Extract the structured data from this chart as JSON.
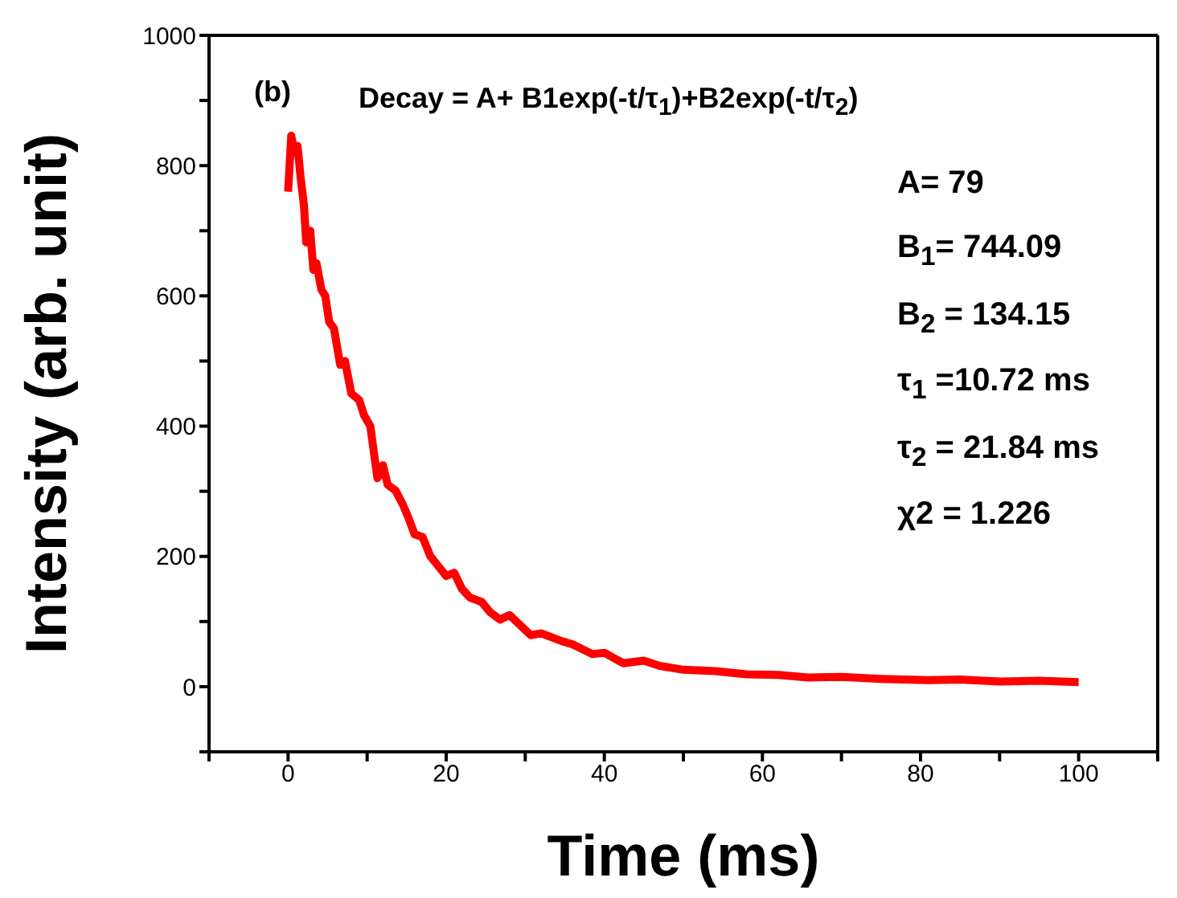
{
  "chart_data": {
    "type": "line",
    "xlabel": "Time (ms)",
    "ylabel": "Intensity (arb. unit)",
    "annotations": [
      "(b)",
      "Decay = A+ B1exp(-t/τ$_{1}$)+B2exp(-t/τ$_{2}$)",
      "A= 79",
      "B$_{1}$= 744.09",
      "B$_{2}$ = 134.15",
      "τ$_{1}$ =10.72 ms",
      "τ$_{2}$ = 21.84 ms",
      "χ2 = 1.226"
    ],
    "series": [
      {
        "color": "#ff0000",
        "x": [
          0,
          0.4,
          0.8,
          1.2,
          1.6,
          2,
          2.3,
          2.8,
          3.2,
          3.6,
          4.2,
          4.7,
          5.2,
          5.8,
          6.6,
          7.2,
          8,
          9,
          9.6,
          10.4,
          11.3,
          12,
          12.6,
          13.6,
          14.5,
          15.2,
          16,
          17,
          18,
          19,
          20,
          21,
          22,
          23,
          24.5,
          25.5,
          26.8,
          28,
          30.7,
          32,
          34.6,
          36,
          38.5,
          40,
          42.4,
          45,
          47,
          50,
          54,
          58,
          62,
          65.8,
          70,
          75,
          81,
          85,
          90,
          95,
          100
        ],
        "values": [
          760,
          846,
          820,
          830,
          780,
          740,
          682,
          700,
          640,
          650,
          610,
          600,
          560,
          550,
          494,
          500,
          450,
          440,
          417,
          400,
          320,
          340,
          310,
          301,
          280,
          260,
          234,
          230,
          200,
          185,
          170,
          175,
          150,
          137,
          130,
          115,
          103,
          110,
          79,
          82,
          70,
          65,
          50,
          52,
          36,
          40,
          32,
          26,
          24,
          19,
          18,
          14,
          15,
          12,
          10,
          11,
          8,
          9,
          7
        ]
      }
    ],
    "xlim": [
      -10,
      110
    ],
    "xticks": [
      0,
      20,
      40,
      60,
      80,
      100
    ],
    "ylim": [
      -100,
      1000
    ],
    "yticks": [
      0,
      200,
      400,
      600,
      800,
      1000
    ],
    "marker": "none",
    "line_style": "solid"
  }
}
